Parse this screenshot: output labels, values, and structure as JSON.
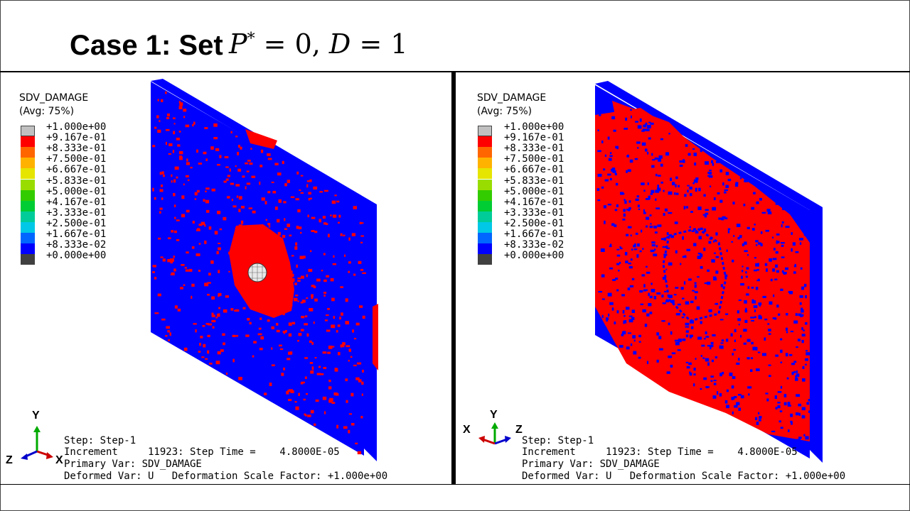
{
  "slide": {
    "title_text": "Case 1: Set",
    "title_math": {
      "p": "P",
      "star": "*",
      "rest": " = 0, ",
      "d": "D",
      "rest2": " = 1"
    }
  },
  "colors": {
    "red": "#ff0000",
    "blue": "#0000ff",
    "gray_top": "#c8c8c8",
    "dark_bottom": "#404040"
  },
  "legend": {
    "title": "SDV_DAMAGE",
    "subtitle": "(Avg: 75%)",
    "colors": [
      "#c0c0c0",
      "#ff0000",
      "#ff6600",
      "#ffb300",
      "#e5e500",
      "#99dd00",
      "#33cc00",
      "#00cc33",
      "#00cc99",
      "#00c8e6",
      "#0066ff",
      "#0000ff",
      "#404040"
    ],
    "labels": [
      "+1.000e+00",
      "+9.167e-01",
      "+8.333e-01",
      "+7.500e-01",
      "+6.667e-01",
      "+5.833e-01",
      "+5.000e-01",
      "+4.167e-01",
      "+3.333e-01",
      "+2.500e-01",
      "+1.667e-01",
      "+8.333e-02",
      "+0.000e+00"
    ]
  },
  "panels": [
    {
      "legend_title": "SDV_DAMAGE",
      "legend_subtitle": "(Avg: 75%)",
      "info": {
        "step": "Step: Step-1",
        "increment": "Increment     11923: Step Time =    4.8000E-05",
        "primary": "Primary Var: SDV_DAMAGE",
        "deformed": "Deformed Var: U   Deformation Scale Factor: +1.000e+00"
      },
      "triad": {
        "y": "Y",
        "z": "Z",
        "x": "X"
      },
      "icons": [
        "coordinate-triad-icon",
        "projectile-sphere-icon"
      ]
    },
    {
      "legend_title": "SDV_DAMAGE",
      "legend_subtitle": "(Avg: 75%)",
      "info": {
        "step": "Step: Step-1",
        "increment": "Increment     11923: Step Time =    4.8000E-05",
        "primary": "Primary Var: SDV_DAMAGE",
        "deformed": "Deformed Var: U   Deformation Scale Factor: +1.000e+00"
      },
      "triad": {
        "y": "Y",
        "z": "Z",
        "x": "X"
      },
      "icons": [
        "coordinate-triad-icon"
      ]
    }
  ]
}
